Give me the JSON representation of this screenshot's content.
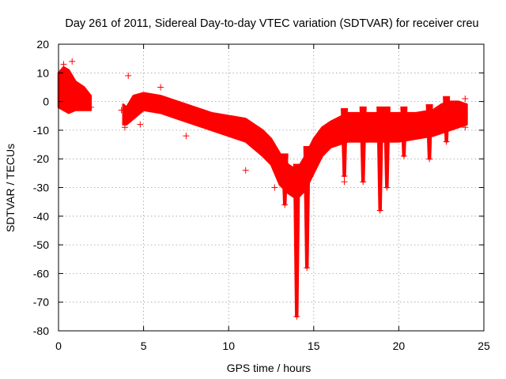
{
  "chart_data": {
    "type": "scatter",
    "title": "Day 261 of 2011, Sidereal Day-to-day VTEC variation (SDTVAR) for receiver creu",
    "xlabel": "GPS time / hours",
    "ylabel": "SDTVAR / TECUs",
    "xlim": [
      0,
      25
    ],
    "ylim": [
      -80,
      20
    ],
    "xticks": [
      0,
      5,
      10,
      15,
      20,
      25
    ],
    "yticks": [
      20,
      10,
      0,
      -10,
      -20,
      -30,
      -40,
      -50,
      -60,
      -70,
      -80
    ],
    "grid": true,
    "marker": "+",
    "series_color": "#ff0000",
    "series": [
      {
        "name": "SDTVAR",
        "band_segments": [
          [
            [
              0.0,
              -2,
              10
            ],
            [
              0.3,
              -3,
              12
            ],
            [
              0.6,
              -4,
              11
            ],
            [
              1.0,
              -3,
              7
            ],
            [
              1.5,
              -3,
              5
            ],
            [
              1.9,
              -3,
              2
            ]
          ],
          [
            [
              3.8,
              -8,
              -1
            ],
            [
              4.0,
              -8,
              -2
            ],
            [
              4.4,
              -6,
              2
            ],
            [
              5.0,
              -3,
              3
            ],
            [
              6.0,
              -4,
              2
            ],
            [
              7.0,
              -6,
              0
            ],
            [
              8.0,
              -8,
              -2
            ],
            [
              9.0,
              -10,
              -4
            ],
            [
              10.0,
              -12,
              -5
            ],
            [
              11.0,
              -14,
              -6
            ],
            [
              12.0,
              -19,
              -10
            ],
            [
              12.5,
              -22,
              -13
            ],
            [
              13.0,
              -29,
              -18
            ],
            [
              13.5,
              -32,
              -22
            ],
            [
              14.0,
              -34,
              -24
            ],
            [
              14.5,
              -31,
              -19
            ],
            [
              15.0,
              -25,
              -13
            ],
            [
              15.5,
              -19,
              -9
            ],
            [
              16.0,
              -16,
              -7
            ],
            [
              17.0,
              -14,
              -4
            ],
            [
              18.0,
              -14,
              -4
            ],
            [
              19.0,
              -14,
              -4
            ],
            [
              20.0,
              -14,
              -4
            ],
            [
              21.0,
              -13,
              -4
            ],
            [
              22.0,
              -12,
              -3
            ],
            [
              22.5,
              -11,
              -1
            ],
            [
              23.0,
              -10,
              0
            ],
            [
              23.5,
              -9,
              0
            ],
            [
              24.0,
              -8,
              -1
            ]
          ]
        ],
        "dips": [
          [
            13.3,
            -36
          ],
          [
            14.0,
            -75
          ],
          [
            14.6,
            -58
          ],
          [
            16.8,
            -26
          ],
          [
            17.9,
            -28
          ],
          [
            18.9,
            -38
          ],
          [
            19.3,
            -30
          ],
          [
            20.3,
            -19
          ],
          [
            21.8,
            -20
          ],
          [
            22.8,
            -14
          ]
        ],
        "outliers": [
          [
            0.3,
            13
          ],
          [
            0.8,
            14
          ],
          [
            1.9,
            -2
          ],
          [
            3.7,
            -3
          ],
          [
            3.9,
            -9
          ],
          [
            4.1,
            9
          ],
          [
            4.8,
            -8
          ],
          [
            6.0,
            5
          ],
          [
            7.5,
            -12
          ],
          [
            11.0,
            -24
          ],
          [
            12.7,
            -30
          ],
          [
            16.8,
            -28
          ],
          [
            23.9,
            1
          ],
          [
            23.9,
            -9
          ]
        ]
      }
    ]
  }
}
